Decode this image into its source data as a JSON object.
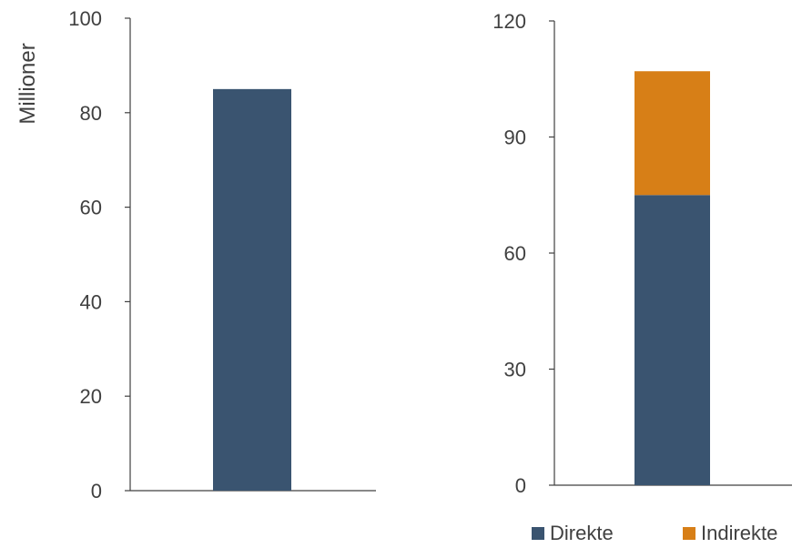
{
  "chart_data": [
    {
      "type": "bar",
      "ylabel": "Millioner",
      "ylim": [
        0,
        100
      ],
      "yticks": [
        "0",
        "20",
        "40",
        "60",
        "80",
        "100"
      ],
      "categories": [
        ""
      ],
      "series": [
        {
          "name": "Direkte",
          "values": [
            85
          ]
        }
      ],
      "colors": {
        "Direkte": "#3a5470"
      },
      "grid": false
    },
    {
      "type": "bar",
      "stacked": true,
      "ylim": [
        0,
        120
      ],
      "yticks": [
        "0",
        "30",
        "60",
        "90",
        "120"
      ],
      "categories": [
        ""
      ],
      "series": [
        {
          "name": "Direkte",
          "values": [
            75
          ]
        },
        {
          "name": "Indirekte",
          "values": [
            32
          ]
        }
      ],
      "colors": {
        "Direkte": "#3a5470",
        "Indirekte": "#d77f17"
      },
      "legend": {
        "position": "bottom",
        "items": [
          "Direkte",
          "Indirekte"
        ]
      },
      "grid": false
    }
  ]
}
